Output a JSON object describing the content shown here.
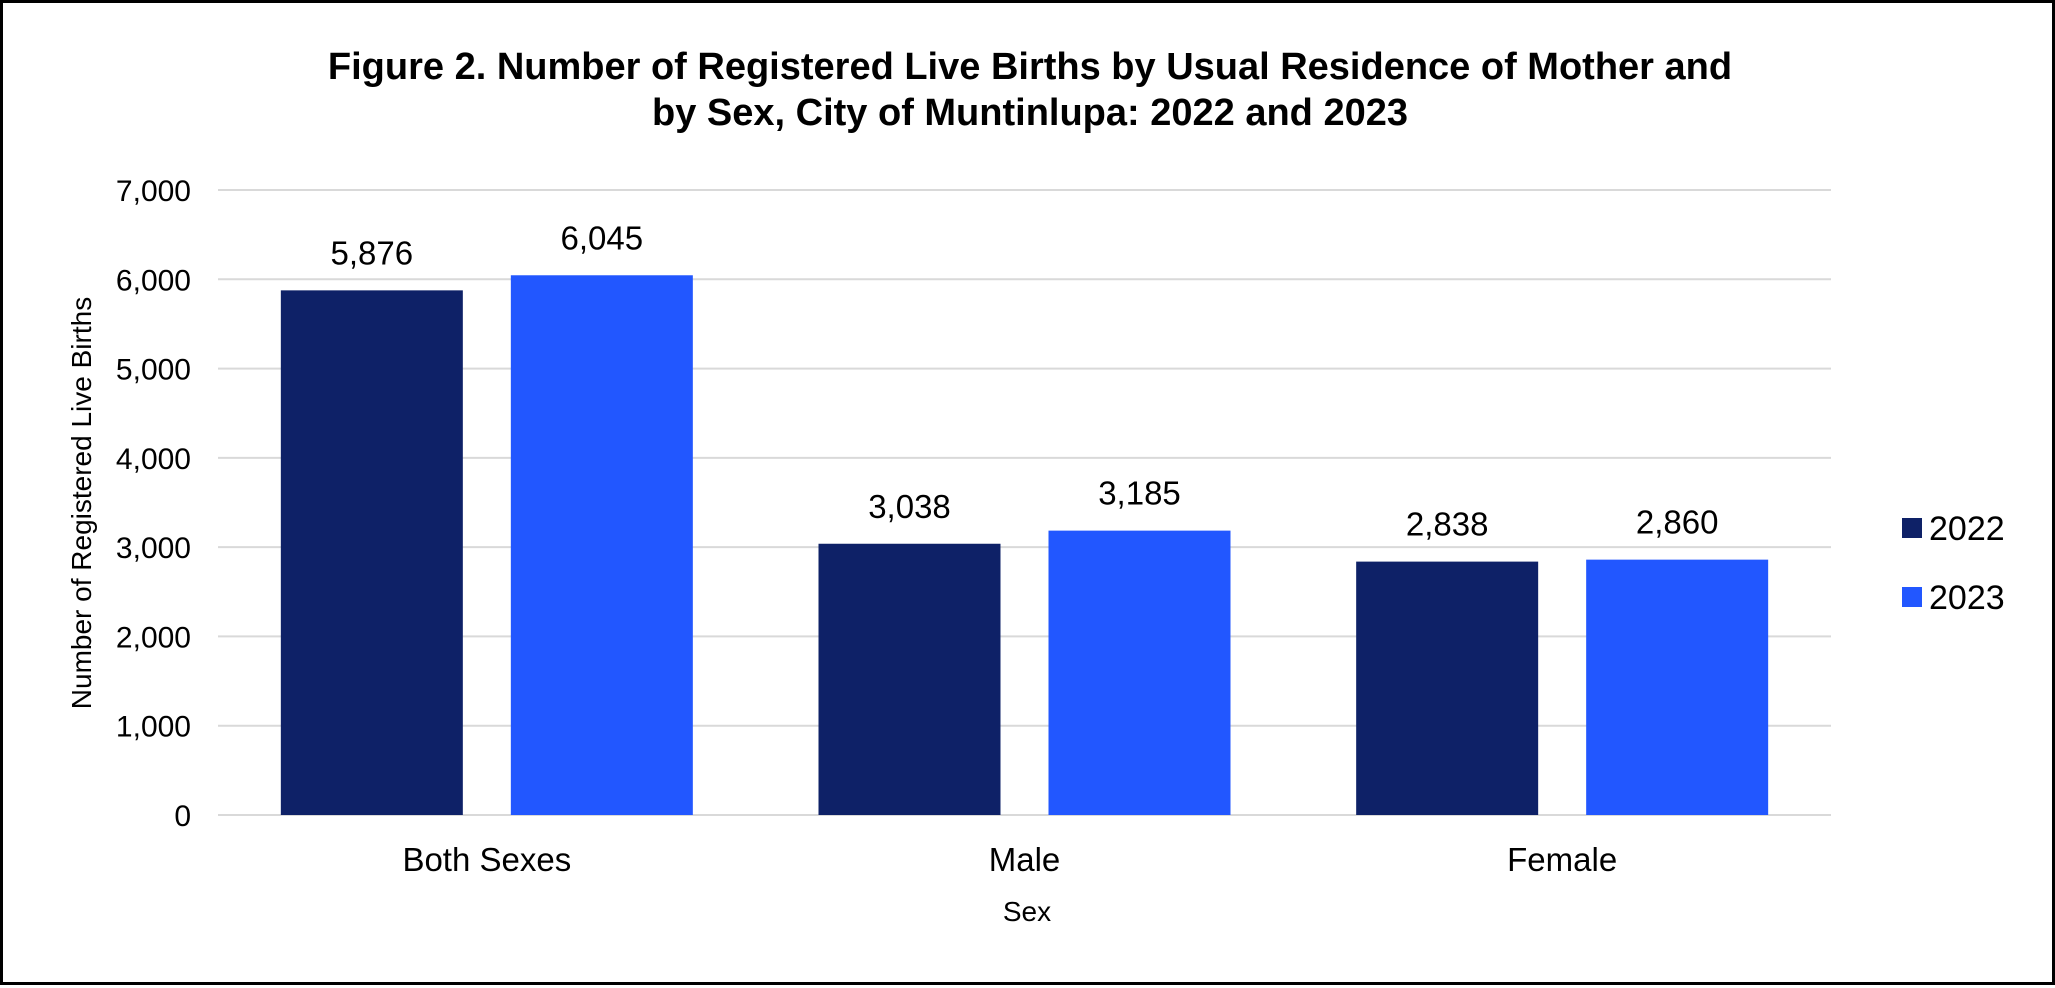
{
  "chart_data": {
    "type": "bar",
    "title_lines": [
      "Figure 2. Number of Registered Live Births by Usual Residence of Mother and",
      "by Sex, City of Muntinlupa: 2022 and 2023"
    ],
    "xlabel": "Sex",
    "ylabel": "Number of Registered Live Births",
    "categories": [
      "Both Sexes",
      "Male",
      "Female"
    ],
    "series": [
      {
        "name": "2022",
        "color": "#0e2167",
        "values": [
          5876,
          3038,
          2838
        ],
        "labels": [
          "5,876",
          "3,038",
          "2,838"
        ]
      },
      {
        "name": "2023",
        "color": "#2257ff",
        "values": [
          6045,
          3185,
          2860
        ],
        "labels": [
          "6,045",
          "3,185",
          "2,860"
        ]
      }
    ],
    "ylim": [
      0,
      7000
    ],
    "yticks": [
      0,
      1000,
      2000,
      3000,
      4000,
      5000,
      6000,
      7000
    ],
    "ytick_labels": [
      "0",
      "1,000",
      "2,000",
      "3,000",
      "4,000",
      "5,000",
      "6,000",
      "7,000"
    ],
    "grid": true,
    "gridline_color": "#d9d9d9",
    "legend_position": "right"
  }
}
